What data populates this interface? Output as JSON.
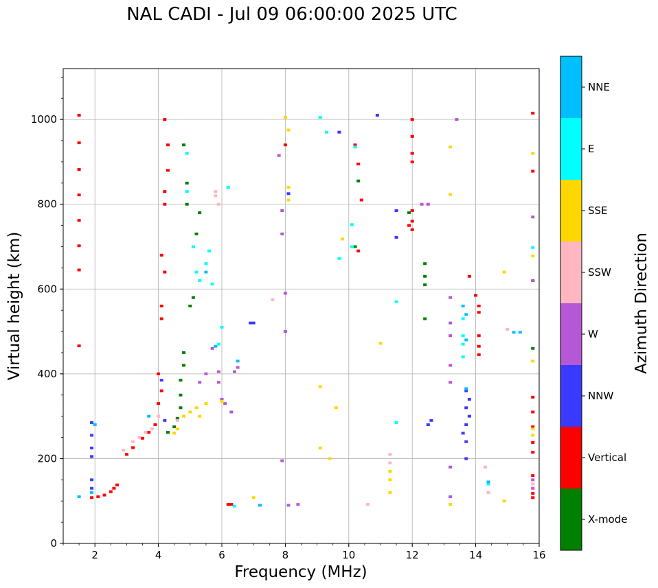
{
  "chart_data": {
    "type": "scatter",
    "title": "NAL CADI - Jul 09 06:00:00 2025 UTC",
    "xlabel": "Frequency (MHz)",
    "ylabel": "Virtual height (km)",
    "xlim": [
      1,
      16
    ],
    "ylim": [
      0,
      1120
    ],
    "xticks": [
      "2",
      "4",
      "6",
      "8",
      "10",
      "12",
      "14",
      "16"
    ],
    "yticks": [
      "0",
      "200",
      "400",
      "600",
      "800",
      "1000"
    ],
    "grid": true,
    "colorbar": {
      "label": "Azimuth Direction",
      "categories": [
        "X-mode",
        "Vertical",
        "NNW",
        "W",
        "SSW",
        "SSE",
        "E",
        "NNE"
      ],
      "colors": [
        "#008000",
        "#ff0000",
        "#3a3aff",
        "#b657d6",
        "#ffb6c1",
        "#ffd700",
        "#00ffff",
        "#00bfff"
      ]
    },
    "series": [
      {
        "name": "Vertical",
        "points": [
          [
            1.5,
            1010
          ],
          [
            1.5,
            945
          ],
          [
            1.5,
            882
          ],
          [
            1.5,
            822
          ],
          [
            1.5,
            762
          ],
          [
            1.5,
            702
          ],
          [
            1.5,
            645
          ],
          [
            1.5,
            466
          ],
          [
            1.9,
            108
          ],
          [
            2.1,
            110
          ],
          [
            2.3,
            114
          ],
          [
            2.5,
            122
          ],
          [
            2.6,
            130
          ],
          [
            2.7,
            138
          ],
          [
            3.0,
            210
          ],
          [
            3.2,
            226
          ],
          [
            3.5,
            248
          ],
          [
            3.7,
            262
          ],
          [
            3.9,
            280
          ],
          [
            4.0,
            330
          ],
          [
            4.1,
            360
          ],
          [
            4.0,
            400
          ],
          [
            4.1,
            530
          ],
          [
            4.1,
            560
          ],
          [
            4.2,
            640
          ],
          [
            4.1,
            680
          ],
          [
            4.2,
            800
          ],
          [
            4.2,
            830
          ],
          [
            4.3,
            880
          ],
          [
            4.2,
            1000
          ],
          [
            4.3,
            940
          ],
          [
            6.2,
            92
          ],
          [
            6.3,
            92
          ],
          [
            8.0,
            940
          ],
          [
            10.2,
            940
          ],
          [
            10.3,
            895
          ],
          [
            10.3,
            690
          ],
          [
            10.4,
            810
          ],
          [
            12.0,
            1000
          ],
          [
            12.0,
            960
          ],
          [
            12.0,
            920
          ],
          [
            12.0,
            900
          ],
          [
            12.0,
            785
          ],
          [
            12.0,
            760
          ],
          [
            12.0,
            740
          ],
          [
            11.9,
            750
          ],
          [
            13.8,
            630
          ],
          [
            14.0,
            585
          ],
          [
            14.1,
            560
          ],
          [
            14.1,
            545
          ],
          [
            14.1,
            490
          ],
          [
            14.1,
            465
          ],
          [
            14.1,
            445
          ],
          [
            15.8,
            1015
          ],
          [
            15.8,
            878
          ],
          [
            15.8,
            620
          ],
          [
            15.8,
            345
          ],
          [
            15.8,
            310
          ],
          [
            15.8,
            275
          ],
          [
            15.8,
            238
          ],
          [
            15.8,
            215
          ],
          [
            15.8,
            160
          ],
          [
            15.8,
            118
          ],
          [
            15.8,
            108
          ]
        ]
      },
      {
        "name": "X-mode",
        "points": [
          [
            4.3,
            262
          ],
          [
            4.5,
            275
          ],
          [
            4.6,
            295
          ],
          [
            4.7,
            320
          ],
          [
            4.7,
            350
          ],
          [
            4.7,
            385
          ],
          [
            4.8,
            420
          ],
          [
            4.8,
            450
          ],
          [
            5.0,
            560
          ],
          [
            5.1,
            580
          ],
          [
            4.9,
            800
          ],
          [
            4.9,
            850
          ],
          [
            4.8,
            940
          ],
          [
            5.2,
            730
          ],
          [
            5.3,
            780
          ],
          [
            10.2,
            700
          ],
          [
            10.3,
            855
          ],
          [
            11.9,
            780
          ],
          [
            12.4,
            530
          ],
          [
            12.4,
            660
          ],
          [
            12.4,
            630
          ],
          [
            12.4,
            610
          ],
          [
            15.8,
            460
          ]
        ]
      },
      {
        "name": "NNW",
        "points": [
          [
            1.9,
            285
          ],
          [
            1.9,
            255
          ],
          [
            1.9,
            225
          ],
          [
            1.9,
            205
          ],
          [
            1.9,
            150
          ],
          [
            1.9,
            130
          ],
          [
            4.1,
            385
          ],
          [
            4.2,
            290
          ],
          [
            6.9,
            520
          ],
          [
            7.0,
            520
          ],
          [
            8.1,
            825
          ],
          [
            9.7,
            970
          ],
          [
            10.9,
            1010
          ],
          [
            11.5,
            785
          ],
          [
            11.5,
            722
          ],
          [
            12.5,
            280
          ],
          [
            12.6,
            290
          ],
          [
            13.7,
            360
          ],
          [
            13.7,
            320
          ],
          [
            13.7,
            280
          ],
          [
            13.7,
            240
          ],
          [
            13.7,
            200
          ],
          [
            13.8,
            340
          ],
          [
            13.8,
            300
          ],
          [
            13.6,
            260
          ]
        ]
      },
      {
        "name": "W",
        "points": [
          [
            5.7,
            460
          ],
          [
            5.9,
            405
          ],
          [
            5.9,
            380
          ],
          [
            6.0,
            340
          ],
          [
            6.1,
            330
          ],
          [
            6.3,
            310
          ],
          [
            6.4,
            405
          ],
          [
            6.5,
            415
          ],
          [
            5.5,
            400
          ],
          [
            5.3,
            380
          ],
          [
            7.8,
            915
          ],
          [
            7.9,
            785
          ],
          [
            7.9,
            730
          ],
          [
            8.0,
            590
          ],
          [
            8.0,
            500
          ],
          [
            7.9,
            195
          ],
          [
            8.1,
            90
          ],
          [
            8.4,
            92
          ],
          [
            12.3,
            800
          ],
          [
            12.5,
            800
          ],
          [
            13.2,
            580
          ],
          [
            13.2,
            520
          ],
          [
            13.2,
            490
          ],
          [
            13.2,
            420
          ],
          [
            13.2,
            380
          ],
          [
            13.2,
            180
          ],
          [
            13.2,
            110
          ],
          [
            13.4,
            1000
          ],
          [
            15.8,
            770
          ],
          [
            15.8,
            620
          ],
          [
            15.8,
            150
          ],
          [
            15.8,
            130
          ]
        ]
      },
      {
        "name": "SSW",
        "points": [
          [
            2.9,
            220
          ],
          [
            3.2,
            240
          ],
          [
            3.4,
            250
          ],
          [
            3.6,
            262
          ],
          [
            3.8,
            270
          ],
          [
            4.0,
            300
          ],
          [
            4.6,
            290
          ],
          [
            4.8,
            300
          ],
          [
            5.8,
            830
          ],
          [
            5.8,
            820
          ],
          [
            5.9,
            800
          ],
          [
            7.6,
            575
          ],
          [
            10.6,
            92
          ],
          [
            11.3,
            210
          ],
          [
            11.3,
            190
          ],
          [
            14.4,
            120
          ],
          [
            14.3,
            180
          ],
          [
            15.0,
            505
          ],
          [
            15.8,
            140
          ]
        ]
      },
      {
        "name": "SSE",
        "points": [
          [
            4.6,
            270
          ],
          [
            4.5,
            260
          ],
          [
            4.8,
            300
          ],
          [
            5.0,
            310
          ],
          [
            5.2,
            320
          ],
          [
            5.3,
            300
          ],
          [
            5.5,
            330
          ],
          [
            6.0,
            335
          ],
          [
            7.0,
            108
          ],
          [
            8.0,
            1005
          ],
          [
            8.1,
            975
          ],
          [
            8.1,
            810
          ],
          [
            8.1,
            840
          ],
          [
            9.1,
            370
          ],
          [
            9.1,
            225
          ],
          [
            9.4,
            200
          ],
          [
            9.6,
            320
          ],
          [
            9.8,
            718
          ],
          [
            11.0,
            472
          ],
          [
            11.3,
            150
          ],
          [
            11.3,
            120
          ],
          [
            11.3,
            170
          ],
          [
            13.2,
            935
          ],
          [
            13.2,
            823
          ],
          [
            13.2,
            92
          ],
          [
            14.9,
            100
          ],
          [
            14.9,
            640
          ],
          [
            15.8,
            920
          ],
          [
            15.8,
            678
          ],
          [
            15.8,
            430
          ],
          [
            15.8,
            270
          ],
          [
            15.8,
            255
          ]
        ]
      },
      {
        "name": "E",
        "points": [
          [
            4.9,
            920
          ],
          [
            4.9,
            830
          ],
          [
            5.1,
            700
          ],
          [
            5.2,
            640
          ],
          [
            5.3,
            620
          ],
          [
            5.5,
            660
          ],
          [
            5.6,
            690
          ],
          [
            5.7,
            612
          ],
          [
            5.9,
            470
          ],
          [
            6.0,
            510
          ],
          [
            6.2,
            840
          ],
          [
            6.4,
            88
          ],
          [
            9.1,
            1005
          ],
          [
            9.3,
            970
          ],
          [
            9.7,
            672
          ],
          [
            10.1,
            752
          ],
          [
            10.1,
            700
          ],
          [
            10.2,
            935
          ],
          [
            11.5,
            570
          ],
          [
            11.5,
            285
          ],
          [
            13.6,
            530
          ],
          [
            13.6,
            490
          ],
          [
            13.6,
            470
          ],
          [
            13.6,
            440
          ],
          [
            14.4,
            140
          ],
          [
            15.8,
            698
          ]
        ]
      },
      {
        "name": "NNE",
        "points": [
          [
            1.5,
            110
          ],
          [
            1.9,
            120
          ],
          [
            2.0,
            280
          ],
          [
            3.7,
            300
          ],
          [
            5.5,
            640
          ],
          [
            5.8,
            465
          ],
          [
            6.5,
            430
          ],
          [
            7.2,
            90
          ],
          [
            13.6,
            560
          ],
          [
            13.7,
            540
          ],
          [
            13.7,
            480
          ],
          [
            13.7,
            365
          ],
          [
            14.4,
            145
          ],
          [
            15.2,
            498
          ],
          [
            15.4,
            498
          ]
        ]
      }
    ]
  }
}
